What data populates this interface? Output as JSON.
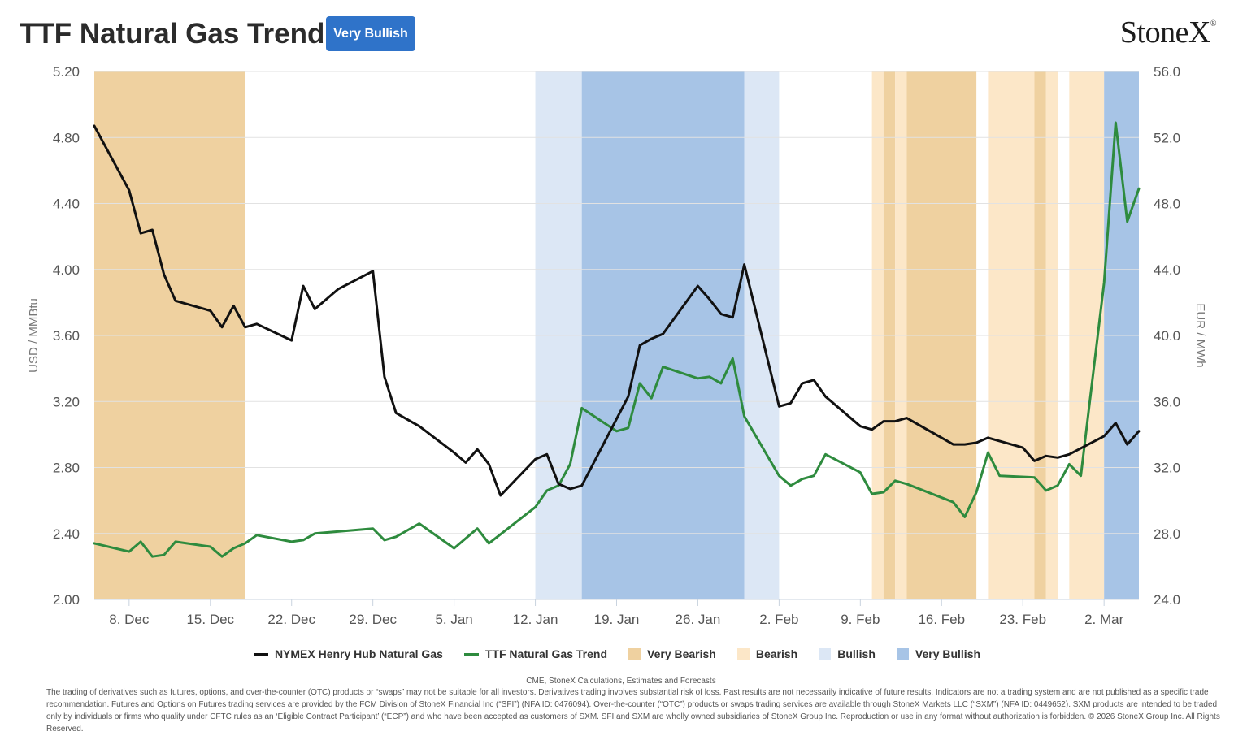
{
  "header": {
    "title": "TTF Natural Gas Trend",
    "badge": "Very Bullish",
    "logo": "StoneX"
  },
  "chart_data": {
    "type": "line",
    "left_axis": {
      "label": "USD / MMBtu",
      "min": 2.0,
      "max": 5.2,
      "ticks": [
        "2.00",
        "2.40",
        "2.80",
        "3.20",
        "3.60",
        "4.00",
        "4.40",
        "4.80",
        "5.20"
      ]
    },
    "right_axis": {
      "label": "EUR / MWh",
      "min": 24.0,
      "max": 56.0,
      "ticks": [
        "24.0",
        "28.0",
        "32.0",
        "36.0",
        "40.0",
        "44.0",
        "48.0",
        "52.0",
        "56.0"
      ]
    },
    "x_axis": {
      "start": "2025-12-05",
      "end": "2026-03-05",
      "ticks": [
        {
          "date": "2025-12-08",
          "label": "8. Dec"
        },
        {
          "date": "2025-12-15",
          "label": "15. Dec"
        },
        {
          "date": "2025-12-22",
          "label": "22. Dec"
        },
        {
          "date": "2025-12-29",
          "label": "29. Dec"
        },
        {
          "date": "2026-01-05",
          "label": "5. Jan"
        },
        {
          "date": "2026-01-12",
          "label": "12. Jan"
        },
        {
          "date": "2026-01-19",
          "label": "19. Jan"
        },
        {
          "date": "2026-01-26",
          "label": "26. Jan"
        },
        {
          "date": "2026-02-02",
          "label": "2. Feb"
        },
        {
          "date": "2026-02-09",
          "label": "9. Feb"
        },
        {
          "date": "2026-02-16",
          "label": "16. Feb"
        },
        {
          "date": "2026-02-23",
          "label": "23. Feb"
        },
        {
          "date": "2026-03-02",
          "label": "2. Mar"
        }
      ]
    },
    "grid": true,
    "legend_position": "bottom",
    "bands": [
      {
        "from": "2025-12-05",
        "to": "2025-12-18",
        "category": "Very Bearish"
      },
      {
        "from": "2026-01-12",
        "to": "2026-01-16",
        "category": "Bullish"
      },
      {
        "from": "2026-01-16",
        "to": "2026-01-30",
        "category": "Very Bullish"
      },
      {
        "from": "2026-01-30",
        "to": "2026-02-02",
        "category": "Bullish"
      },
      {
        "from": "2026-02-10",
        "to": "2026-02-11",
        "category": "Bearish"
      },
      {
        "from": "2026-02-11",
        "to": "2026-02-12",
        "category": "Very Bearish"
      },
      {
        "from": "2026-02-12",
        "to": "2026-02-13",
        "category": "Bearish"
      },
      {
        "from": "2026-02-13",
        "to": "2026-02-19",
        "category": "Very Bearish"
      },
      {
        "from": "2026-02-20",
        "to": "2026-02-24",
        "category": "Bearish"
      },
      {
        "from": "2026-02-24",
        "to": "2026-02-25",
        "category": "Very Bearish"
      },
      {
        "from": "2026-02-25",
        "to": "2026-02-26",
        "category": "Bearish"
      },
      {
        "from": "2026-02-27",
        "to": "2026-03-02",
        "category": "Bearish"
      },
      {
        "from": "2026-03-02",
        "to": "2026-03-05",
        "category": "Very Bullish"
      }
    ],
    "band_categories": [
      {
        "name": "Very Bearish",
        "color": "#efd1a0"
      },
      {
        "name": "Bearish",
        "color": "#fce7c8"
      },
      {
        "name": "Bullish",
        "color": "#dce7f5"
      },
      {
        "name": "Very Bullish",
        "color": "#a7c4e6"
      }
    ],
    "series": [
      {
        "name": "NYMEX Henry Hub Natural Gas",
        "axis": "left",
        "color": "#111111",
        "points": [
          [
            "2025-12-05",
            4.87
          ],
          [
            "2025-12-08",
            4.48
          ],
          [
            "2025-12-09",
            4.22
          ],
          [
            "2025-12-10",
            4.24
          ],
          [
            "2025-12-11",
            3.97
          ],
          [
            "2025-12-12",
            3.81
          ],
          [
            "2025-12-15",
            3.75
          ],
          [
            "2025-12-16",
            3.65
          ],
          [
            "2025-12-17",
            3.78
          ],
          [
            "2025-12-18",
            3.65
          ],
          [
            "2025-12-19",
            3.67
          ],
          [
            "2025-12-22",
            3.57
          ],
          [
            "2025-12-23",
            3.9
          ],
          [
            "2025-12-24",
            3.76
          ],
          [
            "2025-12-26",
            3.88
          ],
          [
            "2025-12-29",
            3.99
          ],
          [
            "2025-12-30",
            3.35
          ],
          [
            "2025-12-31",
            3.13
          ],
          [
            "2026-01-02",
            3.05
          ],
          [
            "2026-01-05",
            2.89
          ],
          [
            "2026-01-06",
            2.83
          ],
          [
            "2026-01-07",
            2.91
          ],
          [
            "2026-01-08",
            2.82
          ],
          [
            "2026-01-09",
            2.63
          ],
          [
            "2026-01-12",
            2.85
          ],
          [
            "2026-01-13",
            2.88
          ],
          [
            "2026-01-14",
            2.7
          ],
          [
            "2026-01-15",
            2.67
          ],
          [
            "2026-01-16",
            2.69
          ],
          [
            "2026-01-20",
            3.23
          ],
          [
            "2026-01-21",
            3.54
          ],
          [
            "2026-01-22",
            3.58
          ],
          [
            "2026-01-23",
            3.61
          ],
          [
            "2026-01-26",
            3.9
          ],
          [
            "2026-01-27",
            3.82
          ],
          [
            "2026-01-28",
            3.73
          ],
          [
            "2026-01-29",
            3.71
          ],
          [
            "2026-01-30",
            4.03
          ],
          [
            "2026-02-02",
            3.17
          ],
          [
            "2026-02-03",
            3.19
          ],
          [
            "2026-02-04",
            3.31
          ],
          [
            "2026-02-05",
            3.33
          ],
          [
            "2026-02-06",
            3.23
          ],
          [
            "2026-02-09",
            3.05
          ],
          [
            "2026-02-10",
            3.03
          ],
          [
            "2026-02-11",
            3.08
          ],
          [
            "2026-02-12",
            3.08
          ],
          [
            "2026-02-13",
            3.1
          ],
          [
            "2026-02-17",
            2.94
          ],
          [
            "2026-02-18",
            2.94
          ],
          [
            "2026-02-19",
            2.95
          ],
          [
            "2026-02-20",
            2.98
          ],
          [
            "2026-02-23",
            2.92
          ],
          [
            "2026-02-24",
            2.84
          ],
          [
            "2026-02-25",
            2.87
          ],
          [
            "2026-02-26",
            2.86
          ],
          [
            "2026-02-27",
            2.88
          ],
          [
            "2026-03-02",
            2.99
          ],
          [
            "2026-03-03",
            3.07
          ],
          [
            "2026-03-04",
            2.94
          ],
          [
            "2026-03-05",
            3.02
          ]
        ]
      },
      {
        "name": "TTF Natural Gas Trend",
        "axis": "right",
        "color": "#2e8b3e",
        "points": [
          [
            "2025-12-05",
            27.4
          ],
          [
            "2025-12-08",
            26.9
          ],
          [
            "2025-12-09",
            27.5
          ],
          [
            "2025-12-10",
            26.6
          ],
          [
            "2025-12-11",
            26.7
          ],
          [
            "2025-12-12",
            27.5
          ],
          [
            "2025-12-15",
            27.2
          ],
          [
            "2025-12-16",
            26.6
          ],
          [
            "2025-12-17",
            27.1
          ],
          [
            "2025-12-18",
            27.4
          ],
          [
            "2025-12-19",
            27.9
          ],
          [
            "2025-12-22",
            27.5
          ],
          [
            "2025-12-23",
            27.6
          ],
          [
            "2025-12-24",
            28.0
          ],
          [
            "2025-12-29",
            28.3
          ],
          [
            "2025-12-30",
            27.6
          ],
          [
            "2025-12-31",
            27.8
          ],
          [
            "2026-01-02",
            28.6
          ],
          [
            "2026-01-05",
            27.1
          ],
          [
            "2026-01-07",
            28.3
          ],
          [
            "2026-01-08",
            27.4
          ],
          [
            "2026-01-12",
            29.6
          ],
          [
            "2026-01-13",
            30.6
          ],
          [
            "2026-01-14",
            30.9
          ],
          [
            "2026-01-15",
            32.2
          ],
          [
            "2026-01-16",
            35.6
          ],
          [
            "2026-01-19",
            34.2
          ],
          [
            "2026-01-20",
            34.4
          ],
          [
            "2026-01-21",
            37.1
          ],
          [
            "2026-01-22",
            36.2
          ],
          [
            "2026-01-23",
            38.1
          ],
          [
            "2026-01-26",
            37.4
          ],
          [
            "2026-01-27",
            37.5
          ],
          [
            "2026-01-28",
            37.1
          ],
          [
            "2026-01-29",
            38.6
          ],
          [
            "2026-01-30",
            35.1
          ],
          [
            "2026-02-02",
            31.5
          ],
          [
            "2026-02-03",
            30.9
          ],
          [
            "2026-02-04",
            31.3
          ],
          [
            "2026-02-05",
            31.5
          ],
          [
            "2026-02-06",
            32.8
          ],
          [
            "2026-02-09",
            31.7
          ],
          [
            "2026-02-10",
            30.4
          ],
          [
            "2026-02-11",
            30.5
          ],
          [
            "2026-02-12",
            31.2
          ],
          [
            "2026-02-13",
            31.0
          ],
          [
            "2026-02-17",
            29.9
          ],
          [
            "2026-02-18",
            29.0
          ],
          [
            "2026-02-19",
            30.5
          ],
          [
            "2026-02-20",
            32.9
          ],
          [
            "2026-02-21",
            31.5
          ],
          [
            "2026-02-24",
            31.4
          ],
          [
            "2026-02-25",
            30.6
          ],
          [
            "2026-02-26",
            30.9
          ],
          [
            "2026-02-27",
            32.2
          ],
          [
            "2026-02-28",
            31.5
          ],
          [
            "2026-03-02",
            43.2
          ],
          [
            "2026-03-03",
            52.9
          ],
          [
            "2026-03-04",
            46.9
          ],
          [
            "2026-03-05",
            48.9
          ]
        ]
      }
    ],
    "legend": [
      {
        "name": "NYMEX Henry Hub Natural Gas",
        "kind": "line",
        "color": "#111111"
      },
      {
        "name": "TTF Natural Gas Trend",
        "kind": "line",
        "color": "#2e8b3e"
      },
      {
        "name": "Very Bearish",
        "kind": "box",
        "color": "#efd1a0"
      },
      {
        "name": "Bearish",
        "kind": "box",
        "color": "#fce7c8"
      },
      {
        "name": "Bullish",
        "kind": "box",
        "color": "#dce7f5"
      },
      {
        "name": "Very Bullish",
        "kind": "box",
        "color": "#a7c4e6"
      }
    ]
  },
  "footer": {
    "source": "CME, StoneX Calculations, Estimates and Forecasts",
    "disclaimer": "The trading of derivatives such as futures, options, and over-the-counter (OTC) products or “swaps” may not be suitable for all investors. Derivatives trading involves substantial risk of loss. Past results are not necessarily indicative of future results. Indicators are not a trading system and are not published as a specific trade recommendation. Futures and Options on Futures trading services are provided by the FCM Division of StoneX Financial Inc (“SFI”) (NFA ID: 0476094). Over-the-counter (“OTC”) products or swaps trading services are available through StoneX Markets LLC (“SXM”) (NFA ID: 0449652). SXM products are intended to be traded only by individuals or firms who qualify under CFTC rules as an ‘Eligible Contract Participant’ (“ECP”) and who have been accepted as customers of SXM. SFI and SXM are wholly owned subsidiaries of StoneX Group Inc. Reproduction or use in any format without authorization is forbidden. © 2026 StoneX Group Inc. All Rights Reserved."
  }
}
